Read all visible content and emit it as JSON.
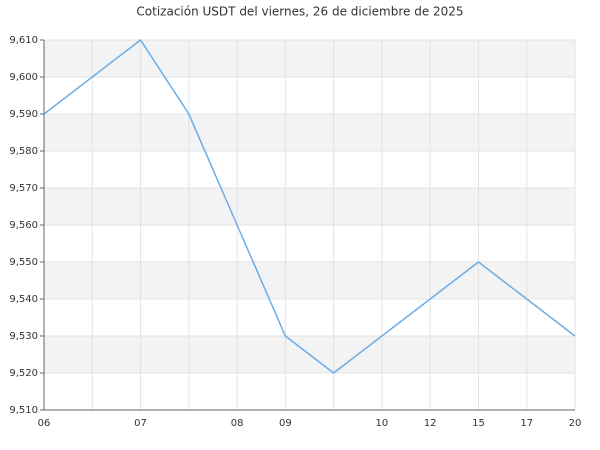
{
  "chart_data": {
    "type": "line",
    "title": "Cotización USDT del viernes, 26 de diciembre de 2025",
    "categories": [
      "06",
      null,
      "07",
      null,
      "08",
      "09",
      null,
      "10",
      "12",
      "15",
      "17",
      "20"
    ],
    "series": [
      {
        "name": "USDT",
        "color": "#6aaee8",
        "values": [
          9590,
          9600,
          9610,
          9590,
          9560,
          9530,
          9520,
          9530,
          9540,
          9550,
          9540,
          9530
        ]
      }
    ],
    "ylim": [
      9510,
      9610
    ],
    "yticks": [
      {
        "value": 9510,
        "label": "9,510"
      },
      {
        "value": 9520,
        "label": "9,520"
      },
      {
        "value": 9530,
        "label": "9,530"
      },
      {
        "value": 9540,
        "label": "9,540"
      },
      {
        "value": 9550,
        "label": "9,550"
      },
      {
        "value": 9560,
        "label": "9,560"
      },
      {
        "value": 9570,
        "label": "9,570"
      },
      {
        "value": 9580,
        "label": "9,580"
      },
      {
        "value": 9590,
        "label": "9,590"
      },
      {
        "value": 9600,
        "label": "9,600"
      },
      {
        "value": 9610,
        "label": "9,610"
      }
    ],
    "grid": true
  }
}
